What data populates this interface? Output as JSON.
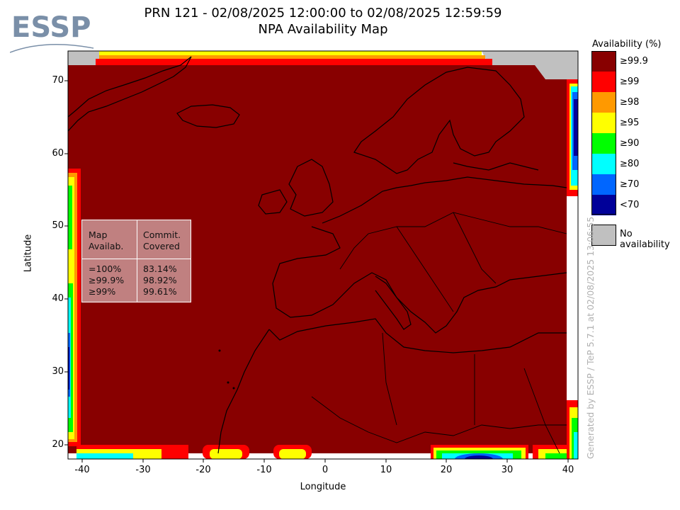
{
  "title_line1": "PRN 121 - 02/08/2025 12:00:00 to 02/08/2025 12:59:59",
  "title_line2": "NPA Availability Map",
  "logo_text": "ESSP",
  "xlabel": "Longitude",
  "ylabel": "Latitude",
  "x_ticks": [
    "-40",
    "-30",
    "-20",
    "-10",
    "0",
    "10",
    "20",
    "30",
    "40"
  ],
  "y_ticks": [
    "70",
    "60",
    "50",
    "40",
    "30",
    "20"
  ],
  "legend": {
    "title": "Availability (%)",
    "items": [
      {
        "label": "≥99.9",
        "color": "#880000"
      },
      {
        "label": "≥99",
        "color": "#ff0000"
      },
      {
        "label": "≥98",
        "color": "#ff9900"
      },
      {
        "label": "≥95",
        "color": "#ffff00"
      },
      {
        "label": "≥90",
        "color": "#00ff00"
      },
      {
        "label": "≥80",
        "color": "#00ffff"
      },
      {
        "label": "≥70",
        "color": "#0066ff"
      },
      {
        "label": "<70",
        "color": "#000099"
      }
    ],
    "no_availability": "No availability"
  },
  "stats": {
    "header_left": "Map\nAvailab.",
    "header_right": "Commit.\nCovered",
    "rows_left": "=100%\n≥99.9%\n≥99%",
    "rows_right": "83.14%\n98.92%\n99.61%"
  },
  "generated_text": "Generated by ESSP / TeP 5.7.1 at 02/08/2025 13:06:55",
  "chart_data": {
    "type": "heatmap",
    "title": "PRN 121 - 02/08/2025 12:00:00 to 02/08/2025 12:59:59 NPA Availability Map",
    "xlabel": "Longitude",
    "ylabel": "Latitude",
    "xlim": [
      -42,
      42
    ],
    "ylim": [
      18,
      74
    ],
    "dominant_category": "≥99.9",
    "statistics": [
      {
        "map_availability": "=100%",
        "commitment_area_covered": "83.14%"
      },
      {
        "map_availability": "≥99.9%",
        "commitment_area_covered": "98.92%"
      },
      {
        "map_availability": "≥99%",
        "commitment_area_covered": "99.61%"
      }
    ]
  }
}
